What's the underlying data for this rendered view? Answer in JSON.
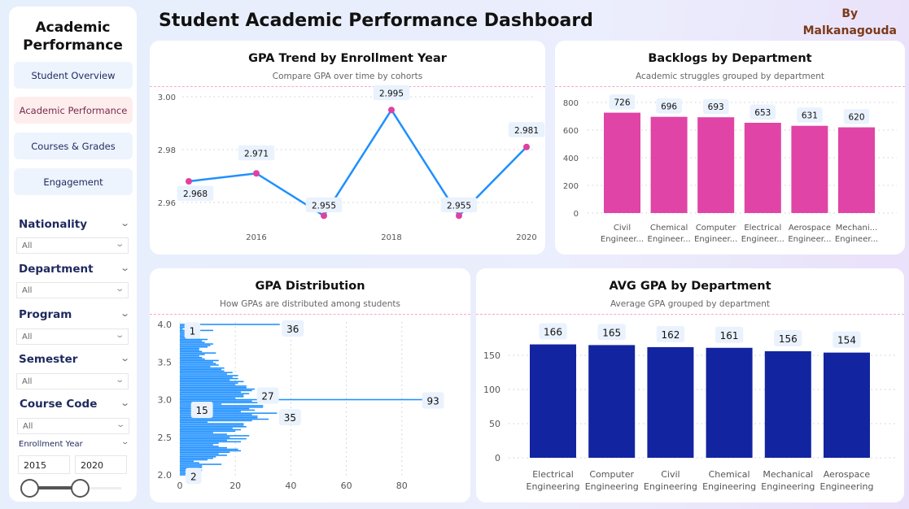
{
  "header": {
    "title": "Student Academic Performance Dashboard",
    "byline_1": "By",
    "byline_2": "Malkanagouda"
  },
  "sidebar": {
    "title": "Academic Performance",
    "nav": [
      {
        "label": "Student Overview",
        "active": false
      },
      {
        "label": "Academic Performance",
        "active": true
      },
      {
        "label": "Courses & Grades",
        "active": false
      },
      {
        "label": "Engagement",
        "active": false
      }
    ],
    "filters": [
      {
        "label": "Nationality",
        "value": "All"
      },
      {
        "label": "Department",
        "value": "All"
      },
      {
        "label": "Program",
        "value": "All"
      },
      {
        "label": "Semester",
        "value": "All"
      },
      {
        "label": "Course Code",
        "value": "All"
      }
    ],
    "enrollment_year": {
      "label": "Enrollment Year",
      "from": "2015",
      "to": "2020",
      "range_fraction": [
        0,
        1
      ]
    }
  },
  "colors": {
    "line": "#1e90ff",
    "marker": "#e040a0",
    "backlog_bar": "#e044a6",
    "hist_bar": "#1e90ff",
    "avg_bar": "#1224a0",
    "label_bg": "#eaf2fd"
  },
  "chart_data": [
    {
      "type": "line",
      "title": "GPA Trend by Enrollment Year",
      "subtitle": "Compare GPA over time by cohorts",
      "x": [
        2015,
        2016,
        2017,
        2018,
        2019,
        2020
      ],
      "values": [
        2.968,
        2.971,
        2.955,
        2.995,
        2.955,
        2.981
      ],
      "labels": [
        "2.968",
        "2.971",
        "2.955",
        "2.995",
        "2.955",
        "2.981"
      ],
      "xticks": [
        "2016",
        "2018",
        "2020"
      ],
      "yticks": [
        "3.00",
        "2.98",
        "2.96"
      ],
      "ylim": [
        2.96,
        3.0
      ],
      "grid": true
    },
    {
      "type": "bar",
      "title": "Backlogs by Department",
      "subtitle": "Academic struggles grouped by department",
      "categories": [
        [
          "Civil",
          "Engineer..."
        ],
        [
          "Chemical",
          "Engineer..."
        ],
        [
          "Computer",
          "Engineer..."
        ],
        [
          "Electrical",
          "Engineer..."
        ],
        [
          "Aerospace",
          "Engineer..."
        ],
        [
          "Mechani...",
          "Engineer..."
        ]
      ],
      "values": [
        726,
        696,
        693,
        653,
        631,
        620
      ],
      "yticks": [
        "800",
        "600",
        "400",
        "200",
        "0"
      ],
      "ylim": [
        0,
        800
      ],
      "grid": true
    },
    {
      "type": "bar",
      "orientation": "horizontal",
      "title": "GPA Distribution",
      "subtitle": "How GPAs are distributed among students",
      "gpa_start": 2.0,
      "gpa_step": 0.02,
      "values": [
        2,
        4,
        2,
        8,
        5,
        8,
        8,
        15,
        7,
        5,
        10,
        12,
        13,
        17,
        14,
        18,
        22,
        21,
        17,
        14,
        12,
        14,
        22,
        17,
        24,
        18,
        25,
        17,
        12,
        20,
        22,
        19,
        24,
        23,
        23,
        10,
        26,
        32,
        28,
        28,
        26,
        35,
        22,
        27,
        25,
        30,
        30,
        15,
        28,
        26,
        93,
        20,
        23,
        23,
        25,
        22,
        26,
        27,
        24,
        24,
        20,
        21,
        23,
        18,
        21,
        19,
        21,
        17,
        19,
        16,
        15,
        16,
        11,
        14,
        13,
        12,
        14,
        9,
        8,
        7,
        9,
        13,
        8,
        7,
        7,
        10,
        11,
        12,
        9,
        8,
        10,
        7,
        5,
        7,
        6,
        3,
        12,
        1,
        4,
        2,
        36
      ],
      "data_labels": [
        {
          "gpa": 4.0,
          "text": "36"
        },
        {
          "gpa": 3.94,
          "text": "1"
        },
        {
          "gpa": 3.14,
          "text": "27"
        },
        {
          "gpa": 3.0,
          "text": "93"
        },
        {
          "gpa": 2.94,
          "text": "15"
        },
        {
          "gpa": 2.82,
          "text": "35"
        },
        {
          "gpa": 2.04,
          "text": "2"
        }
      ],
      "xticks": [
        "0",
        "20",
        "40",
        "60",
        "80"
      ],
      "yticks": [
        "4.0",
        "3.5",
        "3.0",
        "2.5",
        "2.0"
      ],
      "xlim": [
        0,
        100
      ],
      "ylim": [
        2.0,
        4.0
      ],
      "grid": true
    },
    {
      "type": "bar",
      "title": "AVG GPA by Department",
      "subtitle": "Average GPA grouped by department",
      "categories": [
        [
          "Electrical",
          "Engineering"
        ],
        [
          "Computer",
          "Engineering"
        ],
        [
          "Civil",
          "Engineering"
        ],
        [
          "Chemical",
          "Engineering"
        ],
        [
          "Mechanical",
          "Engineering"
        ],
        [
          "Aerospace",
          "Engineering"
        ]
      ],
      "values": [
        166,
        165,
        162,
        161,
        156,
        154
      ],
      "yticks": [
        "150",
        "100",
        "50",
        "0"
      ],
      "ylim": [
        0,
        175
      ],
      "grid": true
    }
  ]
}
